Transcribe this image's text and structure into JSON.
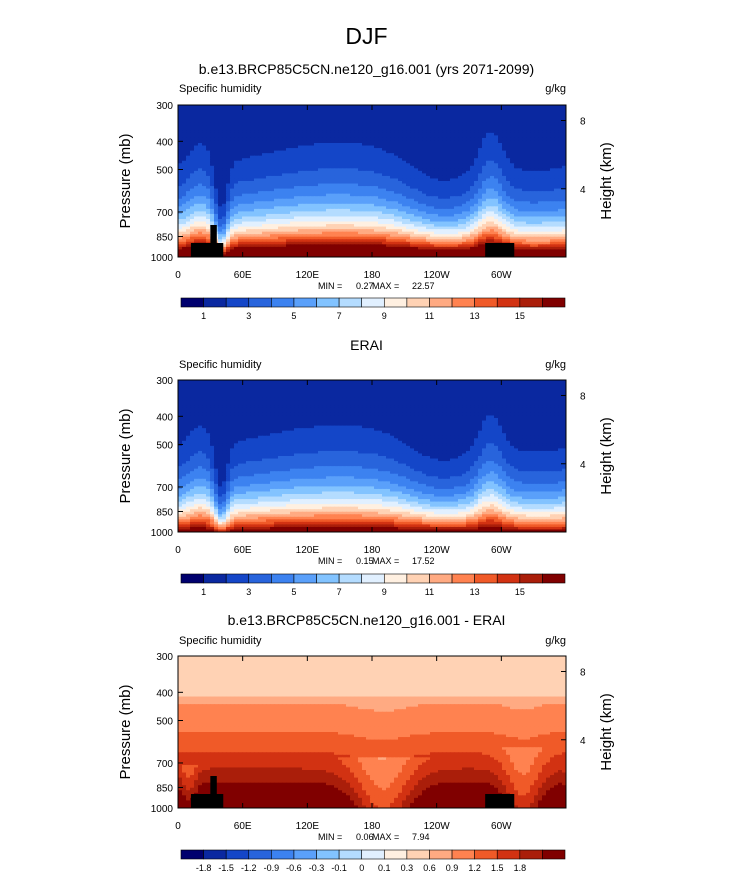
{
  "main_title": "DJF",
  "colors": {
    "abs_levels": [
      "#00006e",
      "#0a28a0",
      "#1446c8",
      "#2864dc",
      "#3c82f0",
      "#5aa0fa",
      "#82c3ff",
      "#b4dcff",
      "#e1f0ff",
      "#fff0e1",
      "#ffd2b4",
      "#ffaa82",
      "#ff8250",
      "#f05a28",
      "#d23212",
      "#aa1e0a",
      "#800000"
    ],
    "diff_levels": [
      "#00006e",
      "#0a28a0",
      "#1446c8",
      "#2864dc",
      "#3c82f0",
      "#5aa0fa",
      "#82c3ff",
      "#b4dcff",
      "#e1f0ff",
      "#fff0e1",
      "#ffd2b4",
      "#ffaa82",
      "#ff8250",
      "#f05a28",
      "#d23212",
      "#aa1e0a",
      "#800000"
    ],
    "topography": "#000000"
  },
  "chart_data": [
    {
      "type": "heatmap",
      "title": "b.e13.BRCP85C5CN.ne120_g16.001 (yrs 2071-2099)",
      "variable": "Specific humidity",
      "units": "g/kg",
      "ylabel": "Pressure (mb)",
      "ylabel_right": "Height (km)",
      "x_ticks": [
        "0",
        "60E",
        "120E",
        "180",
        "120W",
        "60W"
      ],
      "x_tick_values": [
        0,
        60,
        120,
        180,
        240,
        300
      ],
      "xlim": [
        0,
        360
      ],
      "y_ticks": [
        300,
        400,
        500,
        700,
        850,
        1000
      ],
      "ylim": [
        300,
        1000
      ],
      "height_ticks": [
        "8",
        "4"
      ],
      "height_tick_values": [
        8,
        4
      ],
      "min": 0.27,
      "max": 22.57,
      "min_label": "MIN =",
      "min_value": "0.27",
      "max_label": "MAX =",
      "max_value": "22.57",
      "colorbar_levels": [
        0,
        1,
        2,
        3,
        4,
        5,
        6,
        7,
        8,
        9,
        10,
        11,
        12,
        13,
        14,
        15,
        16
      ],
      "colorbar_labels": [
        "1",
        "3",
        "5",
        "7",
        "9",
        "11",
        "13",
        "15"
      ],
      "colorbar_label_values": [
        1,
        3,
        5,
        7,
        9,
        11,
        13,
        15
      ],
      "model": "scenario"
    },
    {
      "type": "heatmap",
      "title": "ERAI",
      "variable": "Specific humidity",
      "units": "g/kg",
      "ylabel": "Pressure (mb)",
      "ylabel_right": "Height (km)",
      "x_ticks": [
        "0",
        "60E",
        "120E",
        "180",
        "120W",
        "60W"
      ],
      "x_tick_values": [
        0,
        60,
        120,
        180,
        240,
        300
      ],
      "xlim": [
        0,
        360
      ],
      "y_ticks": [
        300,
        400,
        500,
        700,
        850,
        1000
      ],
      "ylim": [
        300,
        1000
      ],
      "height_ticks": [
        "8",
        "4"
      ],
      "height_tick_values": [
        8,
        4
      ],
      "min": 0.15,
      "max": 17.52,
      "min_label": "MIN =",
      "min_value": "0.15",
      "max_label": "MAX =",
      "max_value": "17.52",
      "colorbar_levels": [
        0,
        1,
        2,
        3,
        4,
        5,
        6,
        7,
        8,
        9,
        10,
        11,
        12,
        13,
        14,
        15,
        16
      ],
      "colorbar_labels": [
        "1",
        "3",
        "5",
        "7",
        "9",
        "11",
        "13",
        "15"
      ],
      "colorbar_label_values": [
        1,
        3,
        5,
        7,
        9,
        11,
        13,
        15
      ],
      "model": "erai"
    },
    {
      "type": "heatmap",
      "title": "b.e13.BRCP85C5CN.ne120_g16.001 - ERAI",
      "variable": "Specific humidity",
      "units": "g/kg",
      "ylabel": "Pressure (mb)",
      "ylabel_right": "Height (km)",
      "x_ticks": [
        "0",
        "60E",
        "120E",
        "180",
        "120W",
        "60W"
      ],
      "x_tick_values": [
        0,
        60,
        120,
        180,
        240,
        300
      ],
      "xlim": [
        0,
        360
      ],
      "y_ticks": [
        300,
        400,
        500,
        700,
        850,
        1000
      ],
      "ylim": [
        300,
        1000
      ],
      "height_ticks": [
        "8",
        "4"
      ],
      "height_tick_values": [
        8,
        4
      ],
      "min": 0.06,
      "max": 7.94,
      "min_label": "MIN =",
      "min_value": "0.06",
      "max_label": "MAX =",
      "max_value": "7.94",
      "colorbar_levels": [
        -1.8,
        -1.5,
        -1.2,
        -0.9,
        -0.6,
        -0.3,
        -0.1,
        0,
        0.1,
        0.3,
        0.6,
        0.9,
        1.2,
        1.5,
        1.8
      ],
      "colorbar_labels": [
        "-1.8",
        "-1.5",
        "-1.2",
        "-0.9",
        "-0.6",
        "-0.3",
        "-0.1",
        "0",
        "0.1",
        "0.3",
        "0.6",
        "0.9",
        "1.2",
        "1.5",
        "1.8"
      ],
      "colorbar_label_values": [
        -1.8,
        -1.5,
        -1.2,
        -0.9,
        -0.6,
        -0.3,
        -0.1,
        0,
        0.1,
        0.3,
        0.6,
        0.9,
        1.2,
        1.5,
        1.8
      ],
      "model": "diff"
    }
  ]
}
